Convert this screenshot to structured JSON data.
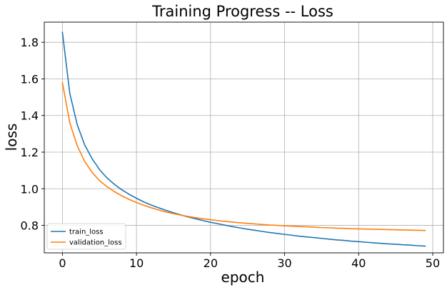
{
  "chart_data": {
    "type": "line",
    "title": "Training Progress -- Loss",
    "xlabel": "epoch",
    "ylabel": "loss",
    "xlim": [
      -2.45,
      51.45
    ],
    "ylim": [
      0.65,
      1.91
    ],
    "xticks": [
      0,
      10,
      20,
      30,
      40,
      50
    ],
    "yticks": [
      0.8,
      1.0,
      1.2,
      1.4,
      1.6,
      1.8
    ],
    "grid": true,
    "legend": "lower-left",
    "x": [
      0,
      1,
      2,
      3,
      4,
      5,
      6,
      7,
      8,
      9,
      10,
      11,
      12,
      13,
      14,
      15,
      16,
      17,
      18,
      19,
      20,
      21,
      22,
      23,
      24,
      25,
      26,
      27,
      28,
      29,
      30,
      31,
      32,
      33,
      34,
      35,
      36,
      37,
      38,
      39,
      40,
      41,
      42,
      43,
      44,
      45,
      46,
      47,
      48,
      49
    ],
    "series": [
      {
        "name": "train_loss",
        "color": "#1f77b4",
        "values": [
          1.855,
          1.52,
          1.35,
          1.24,
          1.165,
          1.105,
          1.06,
          1.025,
          0.995,
          0.97,
          0.948,
          0.928,
          0.911,
          0.896,
          0.882,
          0.869,
          0.857,
          0.846,
          0.836,
          0.826,
          0.817,
          0.809,
          0.801,
          0.793,
          0.786,
          0.779,
          0.773,
          0.767,
          0.761,
          0.756,
          0.751,
          0.746,
          0.741,
          0.737,
          0.733,
          0.729,
          0.725,
          0.721,
          0.718,
          0.714,
          0.711,
          0.708,
          0.705,
          0.702,
          0.699,
          0.697,
          0.694,
          0.692,
          0.689,
          0.687
        ]
      },
      {
        "name": "validation_loss",
        "color": "#ff7f0e",
        "values": [
          1.58,
          1.36,
          1.235,
          1.15,
          1.09,
          1.045,
          1.012,
          0.985,
          0.962,
          0.942,
          0.925,
          0.91,
          0.896,
          0.884,
          0.873,
          0.864,
          0.856,
          0.849,
          0.842,
          0.836,
          0.831,
          0.826,
          0.822,
          0.818,
          0.814,
          0.811,
          0.808,
          0.805,
          0.802,
          0.8,
          0.798,
          0.796,
          0.794,
          0.792,
          0.79,
          0.788,
          0.787,
          0.785,
          0.784,
          0.782,
          0.781,
          0.78,
          0.779,
          0.778,
          0.777,
          0.776,
          0.775,
          0.774,
          0.773,
          0.772
        ]
      }
    ]
  }
}
